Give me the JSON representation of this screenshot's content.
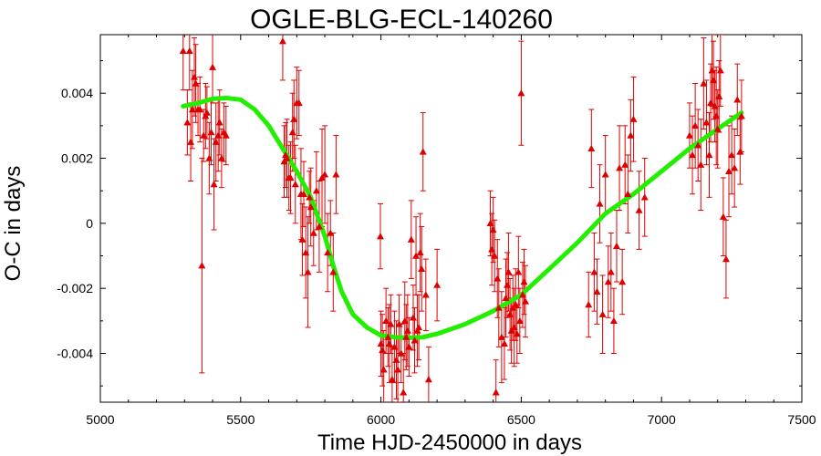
{
  "chart_data": {
    "type": "scatter",
    "title": "OGLE-BLG-ECL-140260",
    "xlabel": "Time HJD-2450000 in days",
    "ylabel": "O-C in days",
    "xlim": [
      5000,
      7500
    ],
    "ylim": [
      -0.0055,
      0.0058
    ],
    "xticks": [
      5000,
      5500,
      6000,
      6500,
      7000,
      7500
    ],
    "xtick_labels": [
      "5000",
      "5500",
      "6000",
      "6500",
      "7000",
      "7500"
    ],
    "yticks": [
      -0.004,
      -0.002,
      0,
      0.002,
      0.004
    ],
    "ytick_labels": [
      "-0.004",
      "-0.002",
      "0",
      "0.002",
      "0.004"
    ],
    "grid": false,
    "series": [
      {
        "kind": "points_with_errorbars",
        "color": "#dd0000",
        "marker": "triangle",
        "x": [
          5295,
          5310,
          5318,
          5322,
          5328,
          5335,
          5340,
          5348,
          5355,
          5362,
          5368,
          5375,
          5380,
          5388,
          5395,
          5400,
          5405,
          5412,
          5420,
          5425,
          5432,
          5440,
          5448,
          5650,
          5655,
          5660,
          5665,
          5672,
          5678,
          5685,
          5690,
          5695,
          5700,
          5708,
          5715,
          5720,
          5725,
          5732,
          5740,
          5745,
          5750,
          5760,
          5770,
          5780,
          5790,
          5800,
          5810,
          5820,
          5830,
          5840,
          5998,
          6000,
          6005,
          6010,
          6018,
          6025,
          6030,
          6035,
          6040,
          6048,
          6055,
          6060,
          6065,
          6072,
          6080,
          6085,
          6090,
          6095,
          6100,
          6108,
          6115,
          6120,
          6125,
          6130,
          6135,
          6140,
          6145,
          6150,
          6160,
          6170,
          6200,
          6390,
          6395,
          6400,
          6405,
          6410,
          6415,
          6420,
          6430,
          6440,
          6445,
          6450,
          6455,
          6460,
          6465,
          6470,
          6475,
          6480,
          6485,
          6490,
          6495,
          6500,
          6505,
          6510,
          6515,
          6740,
          6750,
          6760,
          6770,
          6780,
          6790,
          6800,
          6810,
          6820,
          6830,
          6840,
          6850,
          6860,
          6870,
          6880,
          6890,
          6900,
          6920,
          6940,
          7100,
          7110,
          7120,
          7130,
          7140,
          7150,
          7160,
          7170,
          7175,
          7180,
          7185,
          7190,
          7195,
          7200,
          7205,
          7210,
          7220,
          7230,
          7240,
          7250,
          7260,
          7270,
          7280,
          7285
        ],
        "y": [
          0.0053,
          0.0031,
          0.0053,
          0.0025,
          0.0035,
          0.0045,
          0.0043,
          0.0035,
          0.0035,
          -0.0013,
          0.0027,
          0.0033,
          0.0034,
          0.002,
          0.0028,
          0.0048,
          0.0012,
          0.0025,
          0.0027,
          0.0031,
          0.002,
          0.0028,
          0.0027,
          0.0056,
          0.0019,
          0.0021,
          0.002,
          0.0014,
          0.0014,
          0.0028,
          0.0032,
          0.0012,
          0.0037,
          0.0037,
          0.0009,
          -0.0005,
          0.0009,
          -0.0009,
          -0.0015,
          0.0008,
          0.0005,
          -0.0003,
          0.001,
          -0.0001,
          0.0014,
          0.0015,
          -0.0009,
          -0.0003,
          -0.0015,
          0.0015,
          -0.0004,
          -0.0037,
          -0.0039,
          -0.0045,
          -0.003,
          -0.0035,
          -0.0037,
          -0.0031,
          -0.0048,
          -0.0038,
          -0.0042,
          -0.0045,
          -0.0031,
          -0.004,
          -0.0052,
          -0.003,
          -0.0035,
          -0.0033,
          -0.0038,
          -0.0005,
          -0.0029,
          -0.0036,
          -0.001,
          -0.0033,
          -0.0032,
          -0.0009,
          -0.0014,
          0.0022,
          -0.0022,
          -0.0048,
          -0.0019,
          0.0,
          -0.0008,
          -0.0002,
          -0.001,
          -0.0052,
          -0.0017,
          -0.0026,
          -0.0035,
          -0.0037,
          -0.0023,
          -0.0019,
          -0.0015,
          -0.0028,
          -0.0033,
          -0.0026,
          -0.0032,
          -0.0025,
          -0.0034,
          -0.0015,
          -0.003,
          0.004,
          -0.0022,
          -0.0018,
          -0.0024,
          -0.0025,
          0.0023,
          -0.0015,
          -0.0021,
          0.0006,
          -0.0028,
          0.0015,
          -0.0018,
          -0.0015,
          -0.003,
          -0.0007,
          0.0017,
          -0.0018,
          0.0018,
          0.0009,
          0.0027,
          0.0032,
          0.0004,
          0.0008,
          0.0027,
          0.0021,
          0.003,
          0.0024,
          0.0018,
          0.0043,
          0.0031,
          0.0021,
          0.0037,
          0.0047,
          0.0044,
          0.0036,
          0.0033,
          0.0029,
          0.0039,
          0.0047,
          0.0002,
          -0.0011,
          0.0016,
          0.0021,
          0.0017,
          0.0038,
          0.0022,
          0.0033
        ],
        "yerr": [
          0.0012,
          0.001,
          0.0012,
          0.0012,
          0.0012,
          0.0012,
          0.0012,
          0.0008,
          0.001,
          0.0033,
          0.0008,
          0.001,
          0.0008,
          0.0011,
          0.001,
          0.0011,
          0.0014,
          0.0012,
          0.0011,
          0.001,
          0.0009,
          0.0009,
          0.0009,
          0.0012,
          0.0011,
          0.001,
          0.0012,
          0.001,
          0.0011,
          0.0012,
          0.0012,
          0.0012,
          0.0011,
          0.001,
          0.0014,
          0.0011,
          0.001,
          0.0014,
          0.0017,
          0.0008,
          0.0012,
          0.001,
          0.0012,
          0.0014,
          0.0015,
          0.0015,
          0.0012,
          0.001,
          0.0012,
          0.0012,
          0.001,
          0.001,
          0.0011,
          0.0012,
          0.001,
          0.0009,
          0.0012,
          0.0009,
          0.001,
          0.0011,
          0.0012,
          0.001,
          0.0009,
          0.0009,
          0.0012,
          0.0012,
          0.001,
          0.0011,
          0.0009,
          0.0012,
          0.001,
          0.001,
          0.0012,
          0.0011,
          0.001,
          0.0012,
          0.0013,
          0.0012,
          0.0011,
          0.001,
          0.0011,
          0.001,
          0.0011,
          0.001,
          0.0011,
          0.001,
          0.0012,
          0.0012,
          0.0014,
          0.0011,
          0.0012,
          0.001,
          0.0012,
          0.0011,
          0.001,
          0.001,
          0.0012,
          0.0011,
          0.0009,
          0.0011,
          0.001,
          0.0016,
          0.001,
          0.001,
          0.0011,
          0.001,
          0.0012,
          0.0012,
          0.001,
          0.0012,
          0.0012,
          0.0012,
          0.0011,
          0.0012,
          0.001,
          0.0011,
          0.0013,
          0.001,
          0.0012,
          0.0012,
          0.0011,
          0.0013,
          0.0012,
          0.0012,
          0.001,
          0.0012,
          0.0013,
          0.0011,
          0.0014,
          0.0014,
          0.0013,
          0.0013,
          0.0012,
          0.0011,
          0.0012,
          0.0011,
          0.0015,
          0.0012,
          0.0011,
          0.0011,
          0.0012,
          0.0012,
          0.0014,
          0.0012,
          0.0012,
          0.0011,
          0.001,
          0.0011
        ]
      },
      {
        "kind": "fit_curve",
        "color": "#22ee00",
        "x": [
          5295,
          5350,
          5400,
          5450,
          5500,
          5550,
          5600,
          5650,
          5700,
          5750,
          5800,
          5830,
          5860,
          5900,
          5950,
          6000,
          6050,
          6100,
          6150,
          6200,
          6300,
          6400,
          6500,
          6600,
          6700,
          6800,
          6900,
          7000,
          7100,
          7200,
          7285
        ],
        "y": [
          0.0036,
          0.0037,
          0.00383,
          0.00385,
          0.0038,
          0.0035,
          0.003,
          0.0023,
          0.0016,
          0.0008,
          -0.0004,
          -0.0013,
          -0.0021,
          -0.0028,
          -0.0032,
          -0.00345,
          -0.0035,
          -0.00352,
          -0.0035,
          -0.0034,
          -0.0031,
          -0.0027,
          -0.0022,
          -0.0014,
          -0.0006,
          0.0003,
          0.0009,
          0.0016,
          0.0023,
          0.0029,
          0.0034
        ]
      }
    ]
  }
}
